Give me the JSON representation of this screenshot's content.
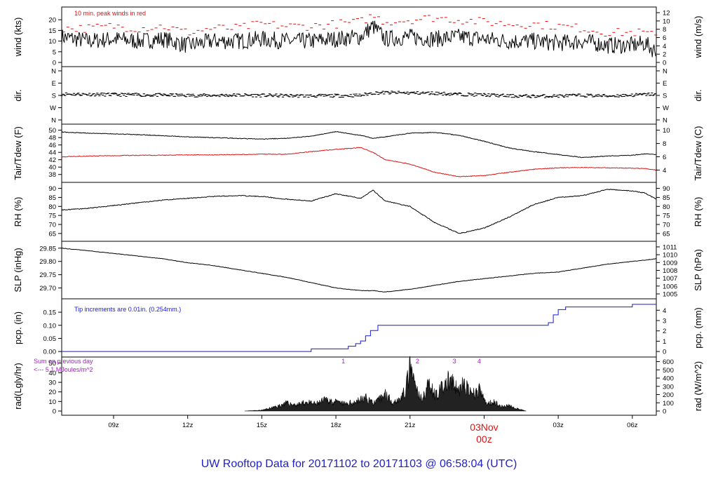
{
  "title": "UW Rooftop Data for 20171102  to  20171103 @ 06:58:04  (UTC)",
  "colors": {
    "title": "#1f1fc8",
    "accent": "#dd1111",
    "series": "#000000",
    "dew": "#dd1111",
    "precip": "#1a1ad6",
    "annot": "#a020c0"
  },
  "x_axis": {
    "ticks": [
      "09z",
      "12z",
      "15z",
      "18z",
      "21z",
      "03z",
      "06z"
    ],
    "tick_hours": [
      9,
      12,
      15,
      18,
      21,
      27,
      30
    ],
    "day_label": "03Nov",
    "day_sub": "00z",
    "range_hours": [
      6.9,
      30.97
    ]
  },
  "chart_data": [
    {
      "id": "wind",
      "type": "line",
      "ylabel_left": "wind (kts)",
      "ylabel_right": "wind (m/s)",
      "left_ticks": [
        "0",
        "5",
        "10",
        "15",
        "20"
      ],
      "right_ticks": [
        "0",
        "2",
        "4",
        "6",
        "8",
        "10",
        "12"
      ],
      "ylim": [
        0,
        24
      ],
      "annotation": "10 min. peak winds in red",
      "x": [
        6.9,
        8,
        9,
        10,
        11,
        12,
        13,
        14,
        15,
        16,
        17,
        18,
        19,
        19.5,
        20,
        21,
        22,
        23,
        24,
        25,
        26,
        27,
        28,
        29,
        30,
        30.5,
        30.97
      ],
      "series": [
        {
          "name": "wind",
          "values": [
            12,
            10,
            11,
            10,
            11,
            8,
            10,
            10,
            11,
            10,
            10,
            11,
            12,
            17,
            11,
            12,
            11,
            12,
            11,
            10,
            10,
            9,
            10,
            8,
            8,
            9,
            5
          ]
        },
        {
          "name": "10 min. peak",
          "values": [
            16,
            16,
            17,
            16,
            17,
            14,
            16,
            16,
            18,
            17,
            17,
            18,
            19,
            22,
            19,
            20,
            21,
            20,
            19,
            18,
            18,
            17,
            16,
            14,
            14,
            14,
            12
          ]
        }
      ]
    },
    {
      "id": "dir",
      "type": "scatter",
      "ylabel_left": "dir.",
      "ylabel_right": "dir.",
      "left_ticks": [
        "N",
        "W",
        "S",
        "E",
        "N"
      ],
      "right_ticks": [
        "N",
        "W",
        "S",
        "E",
        "N"
      ],
      "ylim": [
        0,
        360
      ],
      "x": [
        6.9,
        8,
        9,
        10,
        11,
        12,
        13,
        14,
        15,
        16,
        17,
        18,
        19,
        19.5,
        20,
        21,
        22,
        23,
        24,
        25,
        26,
        27,
        28,
        29,
        30,
        30.5,
        30.97
      ],
      "series": [
        {
          "name": "direction_deg",
          "values": [
            190,
            188,
            185,
            184,
            182,
            180,
            180,
            182,
            180,
            178,
            176,
            178,
            180,
            198,
            200,
            198,
            196,
            188,
            184,
            176,
            174,
            176,
            180,
            176,
            182,
            186,
            190
          ]
        }
      ]
    },
    {
      "id": "temp",
      "type": "line",
      "ylabel_left": "Tair/Tdew (F)",
      "ylabel_right": "Tair/Tdew (C)",
      "left_ticks": [
        "38",
        "40",
        "42",
        "44",
        "46",
        "48",
        "50"
      ],
      "right_ticks": [
        "4",
        "6",
        "8",
        "10"
      ],
      "ylim": [
        37,
        50.5
      ],
      "x": [
        6.9,
        8,
        9,
        10,
        11,
        12,
        13,
        14,
        15,
        16,
        17,
        18,
        19,
        19.5,
        20,
        21,
        22,
        23,
        24,
        25,
        26,
        27,
        28,
        29,
        30,
        30.5,
        30.97
      ],
      "series": [
        {
          "name": "Tair",
          "values": [
            49.5,
            49.2,
            49,
            48.8,
            48.5,
            48.2,
            48,
            47.8,
            47.6,
            47.8,
            48.4,
            49.6,
            48.6,
            47.8,
            48.2,
            49.2,
            49.4,
            48.6,
            47,
            45.2,
            44.2,
            43.4,
            42.6,
            43,
            43.2,
            43.6,
            43.4
          ]
        },
        {
          "name": "Tdew",
          "values": [
            42.8,
            43,
            43.1,
            43.2,
            43.2,
            43.3,
            43.3,
            43.4,
            43.5,
            43.5,
            44.2,
            44.8,
            45.3,
            44,
            42,
            40.8,
            38.6,
            37.4,
            37.7,
            38.6,
            39.4,
            39.8,
            39.9,
            39.8,
            39.7,
            39.6,
            39.2
          ]
        }
      ]
    },
    {
      "id": "rh",
      "type": "line",
      "ylabel_left": "RH (%)",
      "ylabel_right": "RH (%)",
      "left_ticks": [
        "65",
        "70",
        "75",
        "80",
        "85",
        "90"
      ],
      "right_ticks": [
        "65",
        "70",
        "75",
        "80",
        "85",
        "90"
      ],
      "ylim": [
        63,
        91
      ],
      "x": [
        6.9,
        8,
        9,
        10,
        11,
        12,
        13,
        14,
        15,
        16,
        17,
        18,
        19,
        19.5,
        20,
        21,
        22,
        23,
        24,
        25,
        26,
        27,
        28,
        29,
        30,
        30.5,
        30.97
      ],
      "series": [
        {
          "name": "RH",
          "values": [
            78,
            79,
            80.5,
            82,
            83.5,
            84.5,
            85.5,
            86,
            85.5,
            84,
            83,
            87,
            84.5,
            89,
            83,
            80,
            71,
            65,
            68,
            74,
            81,
            85,
            86,
            89.5,
            88.5,
            87.5,
            84
          ]
        }
      ]
    },
    {
      "id": "slp",
      "type": "line",
      "ylabel_left": "SLP (inHg)",
      "ylabel_right": "SLP (hPa)",
      "left_ticks": [
        "29.70",
        "29.75",
        "29.80",
        "29.85"
      ],
      "right_ticks": [
        "1005",
        "1006",
        "1007",
        "1008",
        "1009",
        "1010",
        "1011"
      ],
      "ylim": [
        29.675,
        29.86
      ],
      "x": [
        6.9,
        8,
        9,
        10,
        11,
        12,
        13,
        14,
        15,
        16,
        17,
        18,
        19,
        19.5,
        20,
        21,
        22,
        23,
        24,
        25,
        26,
        27,
        28,
        29,
        30,
        30.5,
        30.97
      ],
      "series": [
        {
          "name": "SLP",
          "values": [
            29.85,
            29.84,
            29.83,
            29.82,
            29.81,
            29.795,
            29.785,
            29.77,
            29.755,
            29.74,
            29.72,
            29.7,
            29.69,
            29.69,
            29.685,
            29.695,
            29.71,
            29.725,
            29.735,
            29.745,
            29.755,
            29.76,
            29.775,
            29.79,
            29.8,
            29.805,
            29.81
          ]
        }
      ]
    },
    {
      "id": "pcp",
      "type": "line",
      "ylabel_left": "pcp. (in)",
      "ylabel_right": "pcp. (mm)",
      "left_ticks": [
        "0.00",
        "0.05",
        "0.10",
        "0.15"
      ],
      "right_ticks": [
        "0",
        "1",
        "2",
        "3",
        "4"
      ],
      "ylim": [
        -0.005,
        0.185
      ],
      "annotation": "Tip increments are 0.01in. (0.254mm.)",
      "x": [
        6.9,
        16.9,
        17,
        18.3,
        18.5,
        18.8,
        19,
        19.2,
        19.4,
        19.7,
        26.3,
        26.6,
        26.8,
        27,
        27.3,
        28,
        29.8,
        30,
        30.97
      ],
      "series": [
        {
          "name": "accum_in",
          "values": [
            0,
            0,
            0.01,
            0.01,
            0.02,
            0.03,
            0.04,
            0.06,
            0.08,
            0.1,
            0.1,
            0.11,
            0.14,
            0.16,
            0.17,
            0.17,
            0.17,
            0.18,
            0.18
          ]
        }
      ]
    },
    {
      "id": "rad",
      "type": "area",
      "ylabel_left": "rad(Lgly/hr)",
      "ylabel_right": "rad (W/m^2)",
      "left_ticks": [
        "0",
        "10",
        "20",
        "30",
        "40",
        "50"
      ],
      "right_ticks": [
        "0",
        "100",
        "200",
        "300",
        "400",
        "500",
        "600"
      ],
      "ylim": [
        0,
        52
      ],
      "annotation_sum": "Sum on previous day",
      "annotation_value": "<--- 5.1 MJoules/m^2",
      "markers": [
        "1",
        "2",
        "3",
        "4"
      ],
      "marker_hours": [
        18.3,
        21.3,
        22.8,
        23.8
      ],
      "x": [
        14.3,
        15,
        15.3,
        15.6,
        16,
        16.4,
        16.8,
        17.2,
        17.6,
        18,
        18.4,
        18.8,
        19.2,
        19.6,
        20,
        20.3,
        20.6,
        20.8,
        21,
        21.2,
        21.4,
        21.6,
        21.8,
        22,
        22.3,
        22.6,
        22.9,
        23.2,
        23.5,
        23.8,
        24.1,
        24.4,
        24.7,
        25,
        25.3,
        25.7
      ],
      "series": [
        {
          "name": "radiation",
          "values": [
            0,
            1,
            3,
            5,
            9,
            7,
            10,
            8,
            13,
            10,
            8,
            11,
            15,
            9,
            20,
            10,
            14,
            22,
            48,
            30,
            14,
            20,
            34,
            18,
            26,
            36,
            24,
            30,
            18,
            24,
            8,
            11,
            5,
            6,
            3,
            0
          ]
        }
      ]
    }
  ]
}
